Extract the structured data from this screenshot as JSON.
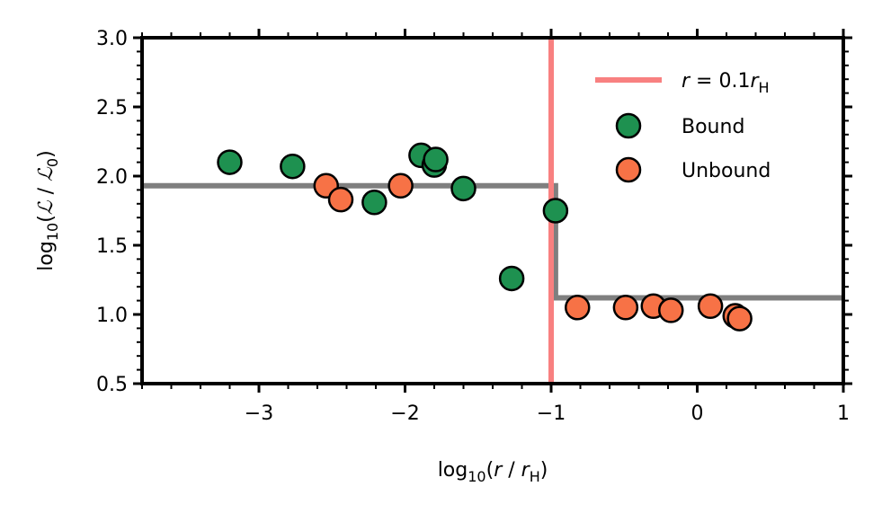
{
  "chart_data": {
    "type": "scatter",
    "xlabel": {
      "pre": "log",
      "sub": "10",
      "mid": "(",
      "var": "r",
      "sep": " / ",
      "var2": "r",
      "sub2": "H",
      "post": ")"
    },
    "ylabel": {
      "pre": "log",
      "sub": "10",
      "mid": "(",
      "var": "ℒ",
      "sep": " / ",
      "var2": "ℒ",
      "sub2": "0",
      "post": ")"
    },
    "xlim": [
      -3.8,
      1.0
    ],
    "ylim": [
      0.5,
      3.0
    ],
    "x_ticks": [
      -3,
      -2,
      -1,
      0,
      1
    ],
    "x_tick_labels": [
      "−3",
      "−2",
      "−1",
      "0",
      "1"
    ],
    "y_ticks": [
      0.5,
      1.0,
      1.5,
      2.0,
      2.5,
      3.0
    ],
    "y_tick_labels": [
      "0.5",
      "1.0",
      "1.5",
      "2.0",
      "2.5",
      "3.0"
    ],
    "grid": false,
    "legend_position": "top-right",
    "vline": {
      "x": -1.0,
      "color": "#f88080",
      "label": {
        "var": "r",
        "mid": " = 0.1",
        "var2": "r",
        "sub": "H"
      }
    },
    "step_line": {
      "color": "#7f7f7f",
      "points": [
        [
          -3.8,
          1.93
        ],
        [
          -0.97,
          1.93
        ],
        [
          -0.97,
          1.12
        ],
        [
          1.0,
          1.12
        ]
      ]
    },
    "series": [
      {
        "name": "Bound",
        "color": "#1e9150",
        "points": [
          [
            -3.2,
            2.1
          ],
          [
            -2.77,
            2.07
          ],
          [
            -2.21,
            1.81
          ],
          [
            -1.89,
            2.15
          ],
          [
            -1.8,
            2.08
          ],
          [
            -1.79,
            2.12
          ],
          [
            -1.6,
            1.91
          ],
          [
            -1.27,
            1.26
          ],
          [
            -0.97,
            1.75
          ]
        ]
      },
      {
        "name": "Unbound",
        "color": "#f77246",
        "points": [
          [
            -2.54,
            1.93
          ],
          [
            -2.44,
            1.83
          ],
          [
            -2.03,
            1.93
          ],
          [
            -0.82,
            1.05
          ],
          [
            -0.49,
            1.05
          ],
          [
            -0.3,
            1.06
          ],
          [
            -0.18,
            1.03
          ],
          [
            0.09,
            1.06
          ],
          [
            0.26,
            0.99
          ],
          [
            0.29,
            0.97
          ]
        ]
      }
    ]
  }
}
